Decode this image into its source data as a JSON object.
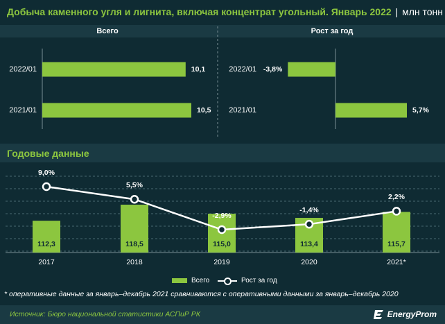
{
  "header": {
    "title": "Добыча каменного угля и лигнита, включая концентрат угольный. Январь 2022",
    "separator": "|",
    "unit": "млн тонн"
  },
  "colors": {
    "background": "#0f2b33",
    "band": "#1a3a43",
    "bar": "#8cc63f",
    "accent_text": "#8cc63f",
    "line": "#ffffff"
  },
  "chart_data": [
    {
      "type": "bar",
      "orientation": "horizontal",
      "title": "Всего",
      "categories": [
        "2022/01",
        "2021/01"
      ],
      "values": [
        10.1,
        10.5
      ],
      "value_labels": [
        "10,1",
        "10,5"
      ]
    },
    {
      "type": "bar",
      "orientation": "horizontal",
      "title": "Рост за год",
      "categories": [
        "2022/01",
        "2021/01"
      ],
      "values": [
        -3.8,
        5.7
      ],
      "value_labels": [
        "-3,8%",
        "5,7%"
      ]
    },
    {
      "type": "bar+line",
      "title": "Годовые данные",
      "categories": [
        "2017",
        "2018",
        "2019",
        "2020",
        "2021*"
      ],
      "series": [
        {
          "name": "Всего",
          "type": "bar",
          "values": [
            112.3,
            118.5,
            115.0,
            113.4,
            115.7
          ],
          "value_labels": [
            "112,3",
            "118,5",
            "115,0",
            "113,4",
            "115,7"
          ]
        },
        {
          "name": "Рост за год",
          "type": "line",
          "values": [
            9.0,
            5.5,
            -2.9,
            -1.4,
            2.2
          ],
          "value_labels": [
            "9,0%",
            "5,5%",
            "-2,9%",
            "-1,4%",
            "2,2%"
          ]
        }
      ],
      "grid": true,
      "legend_position": "bottom"
    }
  ],
  "footnote": "* оперативные данные за январь–декабрь 2021 сравниваются с оперативными данными за январь–декабрь 2020",
  "source": "Источник: Бюро национальной статистики АСПиР РК",
  "logo": {
    "text": "EnergyProm",
    "icon": "energyprom-logo-icon"
  }
}
